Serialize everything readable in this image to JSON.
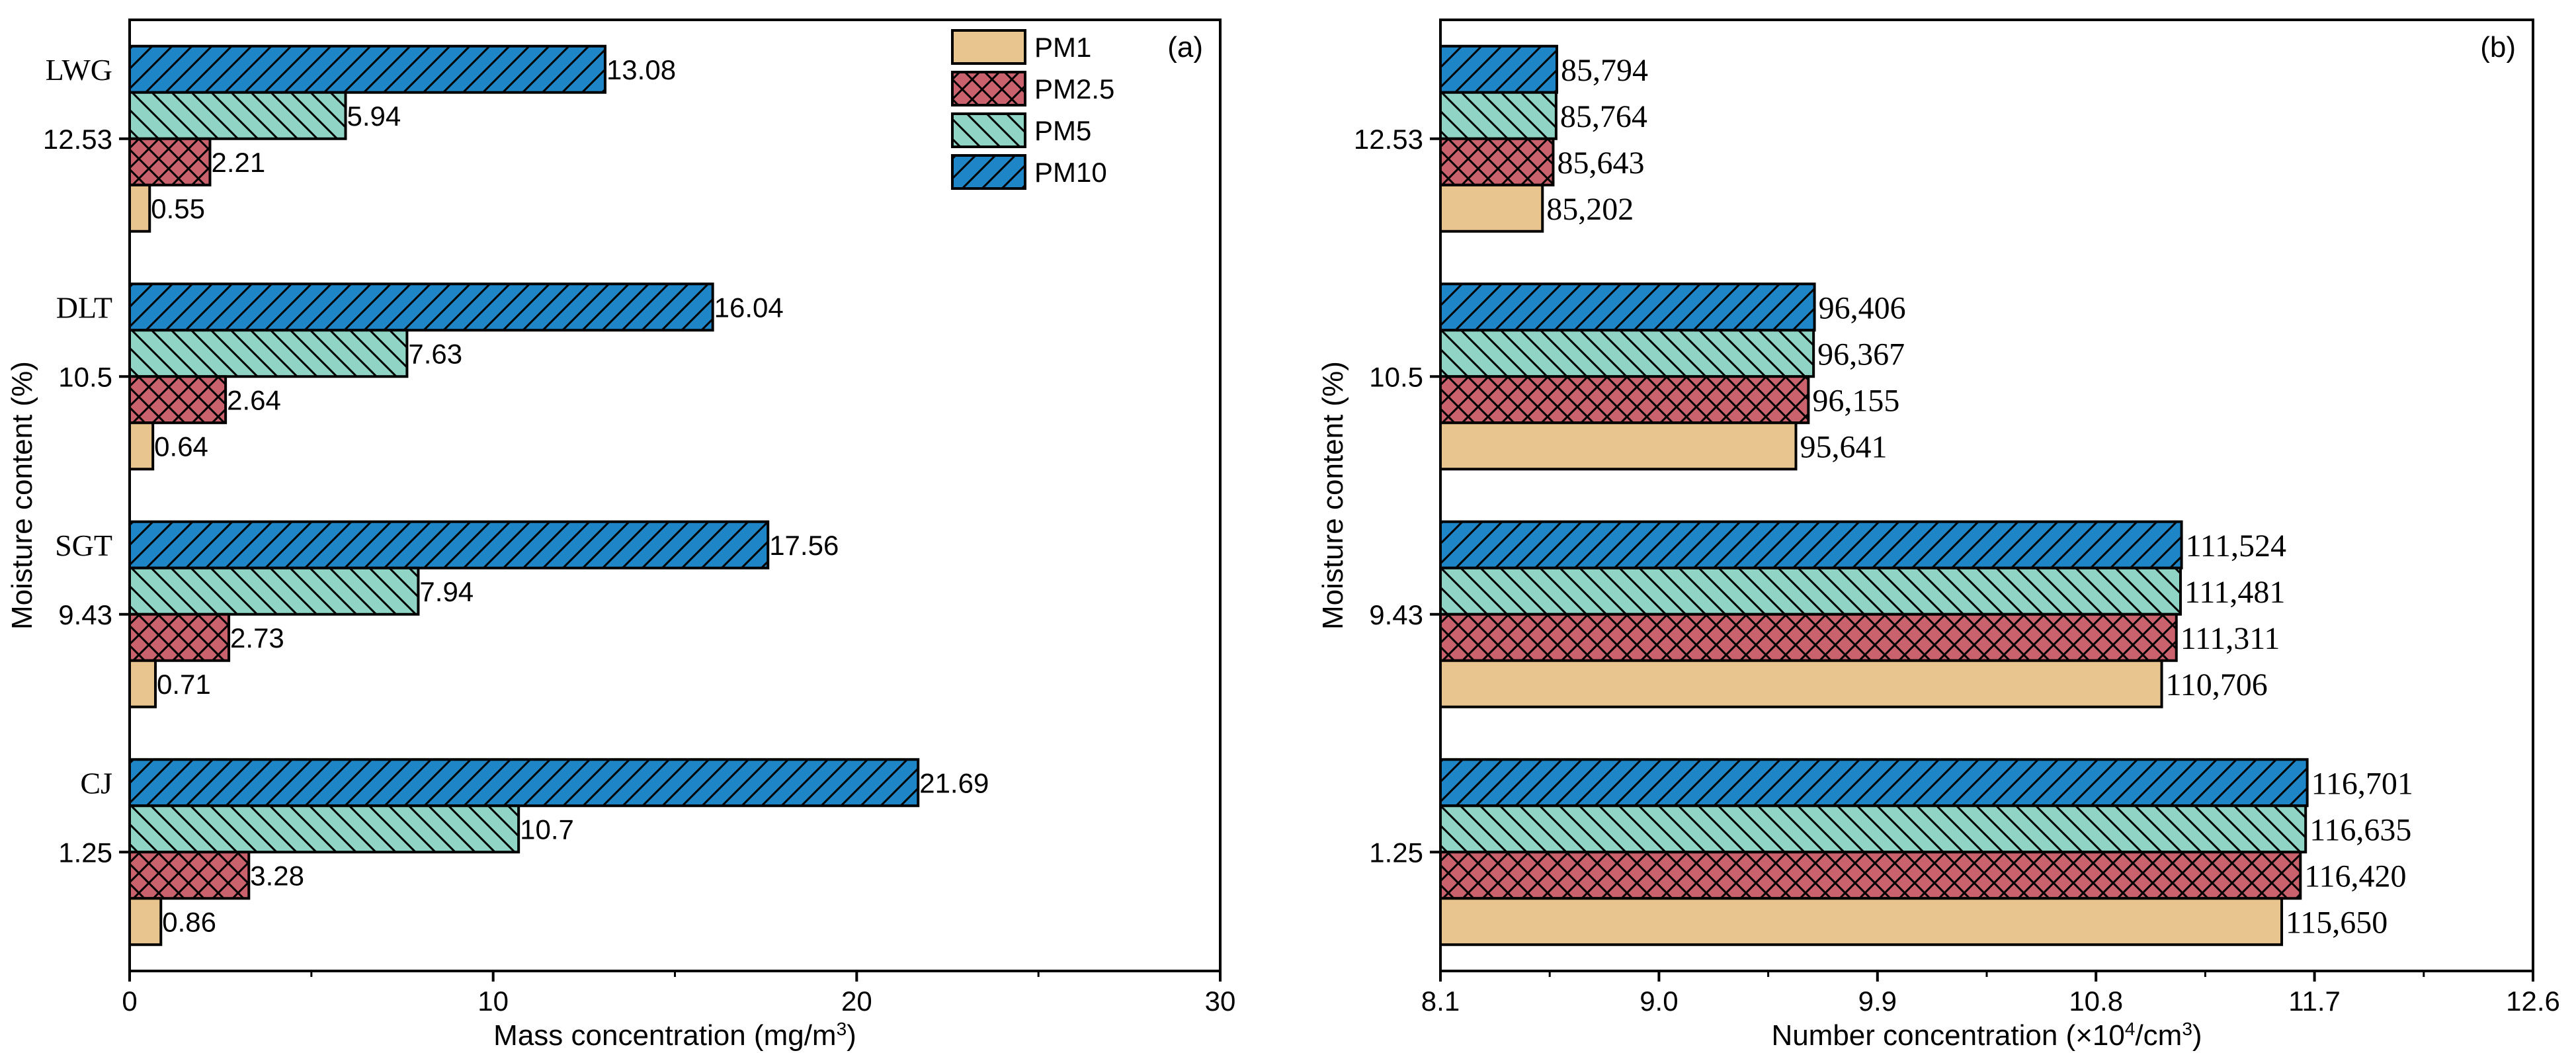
{
  "colors": {
    "PM1": "#e8c48f",
    "PM2.5": "#c9626c",
    "PM5": "#8fd4c4",
    "PM10": "#1e86c6"
  },
  "legend": {
    "items": [
      {
        "key": "PM1",
        "label": "PM1",
        "pattern": "none"
      },
      {
        "key": "PM2.5",
        "label": "PM2.5",
        "pattern": "cross"
      },
      {
        "key": "PM5",
        "label": "PM5",
        "pattern": "backslash"
      },
      {
        "key": "PM10",
        "label": "PM10",
        "pattern": "slash"
      }
    ],
    "placement": "top-right of panel (a)"
  },
  "chart_data": [
    {
      "type": "bar",
      "orientation": "horizontal",
      "panel_label": "(a)",
      "xlabel": "Mass concentration (mg/m³)",
      "xlabel_parts": [
        "Mass concentration (mg/m",
        "3",
        ")"
      ],
      "ylabel": "Moisture content (%)",
      "xlim": [
        0,
        30
      ],
      "xticks": [
        0,
        10,
        20,
        30
      ],
      "xtick_labels": [
        "0",
        "10",
        "20",
        "30"
      ],
      "categories": [
        "12.53",
        "10.5",
        "9.43",
        "1.25"
      ],
      "group_names": [
        "LWG",
        "DLT",
        "SGT",
        "CJ"
      ],
      "series": [
        {
          "name": "PM1",
          "values": [
            0.55,
            0.64,
            0.71,
            0.86
          ],
          "labels": [
            "0.55",
            "0.64",
            "0.71",
            "0.86"
          ]
        },
        {
          "name": "PM2.5",
          "values": [
            2.21,
            2.64,
            2.73,
            3.28
          ],
          "labels": [
            "2.21",
            "2.64",
            "2.73",
            "3.28"
          ]
        },
        {
          "name": "PM5",
          "values": [
            5.94,
            7.63,
            7.94,
            10.7
          ],
          "labels": [
            "5.94",
            "7.63",
            "7.94",
            "10.7"
          ]
        },
        {
          "name": "PM10",
          "values": [
            13.08,
            16.04,
            17.56,
            21.69
          ],
          "labels": [
            "13.08",
            "16.04",
            "17.56",
            "21.69"
          ]
        }
      ],
      "grid": false
    },
    {
      "type": "bar",
      "orientation": "horizontal",
      "panel_label": "(b)",
      "xlabel": "Number concentration (×10⁴/cm³)",
      "xlabel_parts": [
        "Number concentration (×10",
        "4",
        "/cm",
        "3",
        ")"
      ],
      "ylabel": "Moisture content (%)",
      "xlim": [
        8.1,
        12.6
      ],
      "xticks": [
        8.1,
        9.0,
        9.9,
        10.8,
        11.7,
        12.6
      ],
      "xtick_labels": [
        "8.1",
        "9.0",
        "9.9",
        "10.8",
        "11.7",
        "12.6"
      ],
      "categories": [
        "12.53",
        "10.5",
        "9.43",
        "1.25"
      ],
      "series": [
        {
          "name": "PM1",
          "values": [
            8.5202,
            9.5641,
            11.0706,
            11.565
          ],
          "labels": [
            "85,202",
            "95,641",
            "110,706",
            "115,650"
          ]
        },
        {
          "name": "PM2.5",
          "values": [
            8.5643,
            9.6155,
            11.1311,
            11.642
          ],
          "labels": [
            "85,643",
            "96,155",
            "111,311",
            "116,420"
          ]
        },
        {
          "name": "PM5",
          "values": [
            8.5764,
            9.6367,
            11.1481,
            11.6635
          ],
          "labels": [
            "85,764",
            "96,367",
            "111,481",
            "116,635"
          ]
        },
        {
          "name": "PM10",
          "values": [
            8.5794,
            9.6406,
            11.1524,
            11.6701
          ],
          "labels": [
            "85,794",
            "96,406",
            "111,524",
            "116,701"
          ]
        }
      ],
      "grid": false
    }
  ]
}
